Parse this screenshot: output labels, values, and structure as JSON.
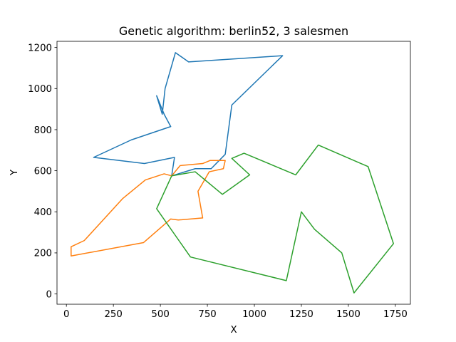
{
  "chart_data": {
    "type": "line",
    "title": "Genetic algorithm: berlin52, 3 salesmen",
    "xlabel": "X",
    "ylabel": "Y",
    "xlim": [
      -50,
      1830
    ],
    "ylim": [
      -50,
      1230
    ],
    "xticks": [
      0,
      250,
      500,
      750,
      1000,
      1250,
      1500,
      1750
    ],
    "yticks": [
      0,
      200,
      400,
      600,
      800,
      1000,
      1200
    ],
    "grid": false,
    "series": [
      {
        "color": "#1f77b4",
        "x": [
          560,
          685,
          770,
          845,
          880,
          1150,
          650,
          580,
          525,
          510,
          480,
          520,
          555,
          345,
          145,
          415,
          575,
          560
        ],
        "y": [
          575,
          610,
          610,
          680,
          920,
          1160,
          1130,
          1175,
          1000,
          875,
          965,
          875,
          815,
          750,
          665,
          635,
          665,
          575
        ]
      },
      {
        "color": "#ff7f0e",
        "x": [
          560,
          605,
          725,
          765,
          845,
          835,
          760,
          700,
          725,
          595,
          555,
          410,
          25,
          25,
          95,
          300,
          420,
          520,
          560
        ],
        "y": [
          575,
          625,
          635,
          650,
          650,
          610,
          595,
          500,
          370,
          360,
          365,
          250,
          185,
          230,
          260,
          465,
          555,
          585,
          575
        ]
      },
      {
        "color": "#2ca02c",
        "x": [
          560,
          685,
          830,
          975,
          880,
          945,
          1220,
          1340,
          1605,
          1740,
          1530,
          1465,
          1320,
          1250,
          1170,
          660,
          480,
          560
        ],
        "y": [
          575,
          595,
          485,
          580,
          660,
          685,
          580,
          725,
          620,
          245,
          5,
          200,
          315,
          400,
          65,
          180,
          415,
          575
        ]
      }
    ]
  }
}
